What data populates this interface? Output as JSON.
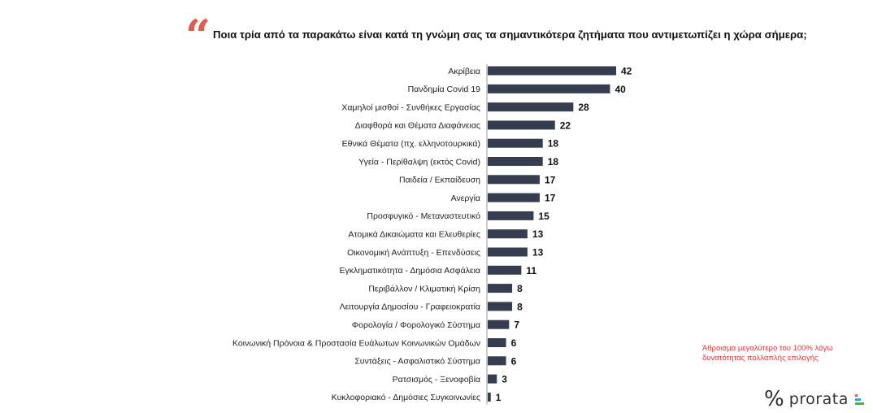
{
  "question": {
    "quote_glyph": "“",
    "text": "Ποια τρία από τα παρακάτω είναι κατά τη γνώμη σας τα σημαντικότερα ζητήματα που αντιμετωπίζει η χώρα σήμερα;"
  },
  "note": "Άθροισμα μεγαλύτερο του 100% λόγω δυνατότητας πολλαπλής επιλογής",
  "brand": {
    "name": "prorata",
    "mark": "%",
    "icon": "prorata-bars-logo"
  },
  "colors": {
    "bar": "#363d4f",
    "accent": "#e05a4e",
    "note": "#e03a2f"
  },
  "chart_data": {
    "type": "bar",
    "orientation": "horizontal",
    "title": "",
    "xlabel": "",
    "ylabel": "",
    "xlim": [
      0,
      42
    ],
    "grid": false,
    "legend": "none",
    "categories": [
      "Ακρίβεια",
      "Πανδημία Covid 19",
      "Χαμηλοί μισθοί - Συνθήκες Εργασίας",
      "Διαφθορά και Θέματα Διαφάνειας",
      "Εθνικά Θέματα (πχ. ελληνοτουρκικά)",
      "Υγεία - Περίθαλψη (εκτός Covid)",
      "Παιδεία / Εκπαίδευση",
      "Ανεργία",
      "Προσφυγικό - Μεταναστευτικό",
      "Ατομικά Δικαιώματα και Ελευθερίες",
      "Οικονομική Ανάπτυξη - Επενδύσεις",
      "Εγκληματικότητα - Δημόσια Ασφάλεια",
      "Περιβάλλον / Κλιματική Κρίση",
      "Λειτουργία Δημοσίου - Γραφειοκρατία",
      "Φορολογία / Φορολογικό Σύστημα",
      "Κοινωνική Πρόνοια & Προστασία Ευάλωτων Κοινωνικών Ομάδων",
      "Συντάξεις - Ασφαλιστικό Σύστημα",
      "Ρατσισμός - Ξενοφοβία",
      "Κυκλοφοριακό - Δημόσιες Συγκοινωνίες"
    ],
    "values": [
      42,
      40,
      28,
      22,
      18,
      18,
      17,
      17,
      15,
      13,
      13,
      11,
      8,
      8,
      7,
      6,
      6,
      3,
      1
    ]
  }
}
